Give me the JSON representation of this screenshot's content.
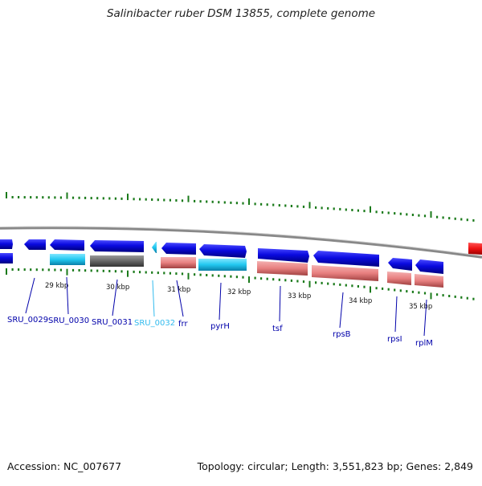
{
  "title": "Salinibacter ruber DSM 13855, complete genome",
  "footer": {
    "accession": "Accession: NC_007677",
    "summary": "Topology: circular; Length: 3,551,823 bp; Genes: 2,849"
  },
  "scale_labels": [
    "29 kbp",
    "30 kbp",
    "31 kbp",
    "32 kbp",
    "33 kbp",
    "34 kbp",
    "35 kbp"
  ],
  "gene_labels": [
    "SRU_0029",
    "SRU_0030",
    "SRU_0031",
    "SRU_0032",
    "frr",
    "pyrH",
    "tsf",
    "rpsB",
    "rpsI",
    "rplM"
  ],
  "colors": {
    "forward_gene": "#0a0ae0",
    "cyan_gene": "#22c8f0",
    "grey_gene": "#666666",
    "pink_gene": "#e88080",
    "red_gene": "#ee1111",
    "backbone": "#888888",
    "tick": "#1a7a1a",
    "label_text": "#0000aa",
    "label_text_cyan": "#33bbee"
  }
}
